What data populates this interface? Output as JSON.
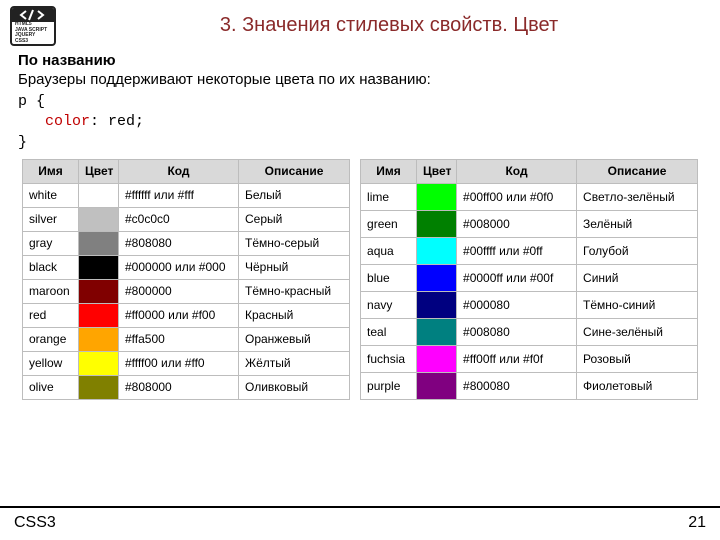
{
  "logo": {
    "lines": [
      "HTML5",
      "JAVA SCRIPT",
      "JQUERY",
      "CSS3"
    ]
  },
  "title": "3. Значения стилевых свойств. Цвет",
  "section": {
    "heading": "По названию",
    "lead": "Браузеры поддерживают некоторые цвета по их названию:",
    "code": {
      "line1": "p {",
      "prop": "color",
      "sep": ": red;",
      "line3": "}"
    }
  },
  "tables": {
    "headers": {
      "name": "Имя",
      "swatch": "Цвет",
      "code": "Код",
      "desc": "Описание"
    },
    "left": [
      {
        "name": "white",
        "hex": "#ffffff",
        "code": "#ffffff или #fff",
        "desc": "Белый"
      },
      {
        "name": "silver",
        "hex": "#c0c0c0",
        "code": "#c0c0c0",
        "desc": "Серый"
      },
      {
        "name": "gray",
        "hex": "#808080",
        "code": "#808080",
        "desc": "Тёмно-серый"
      },
      {
        "name": "black",
        "hex": "#000000",
        "code": "#000000 или #000",
        "desc": "Чёрный"
      },
      {
        "name": "maroon",
        "hex": "#800000",
        "code": "#800000",
        "desc": "Тёмно-красный"
      },
      {
        "name": "red",
        "hex": "#ff0000",
        "code": "#ff0000 или #f00",
        "desc": "Красный"
      },
      {
        "name": "orange",
        "hex": "#ffa500",
        "code": "#ffa500",
        "desc": "Оранжевый"
      },
      {
        "name": "yellow",
        "hex": "#ffff00",
        "code": "#ffff00 или #ff0",
        "desc": "Жёлтый"
      },
      {
        "name": "olive",
        "hex": "#808000",
        "code": "#808000",
        "desc": "Оливковый"
      }
    ],
    "right": [
      {
        "name": "lime",
        "hex": "#00ff00",
        "code": "#00ff00 или #0f0",
        "desc": "Светло-зелёный"
      },
      {
        "name": "green",
        "hex": "#008000",
        "code": "#008000",
        "desc": "Зелёный"
      },
      {
        "name": "aqua",
        "hex": "#00ffff",
        "code": "#00ffff или #0ff",
        "desc": "Голубой"
      },
      {
        "name": "blue",
        "hex": "#0000ff",
        "code": "#0000ff или #00f",
        "desc": "Синий"
      },
      {
        "name": "navy",
        "hex": "#000080",
        "code": "#000080",
        "desc": "Тёмно-синий"
      },
      {
        "name": "teal",
        "hex": "#008080",
        "code": "#008080",
        "desc": "Сине-зелёный"
      },
      {
        "name": "fuchsia",
        "hex": "#ff00ff",
        "code": "#ff00ff или #f0f",
        "desc": "Розовый"
      },
      {
        "name": "purple",
        "hex": "#800080",
        "code": "#800080",
        "desc": "Фиолетовый"
      }
    ]
  },
  "footer": {
    "left": "CSS3",
    "page": "21"
  }
}
